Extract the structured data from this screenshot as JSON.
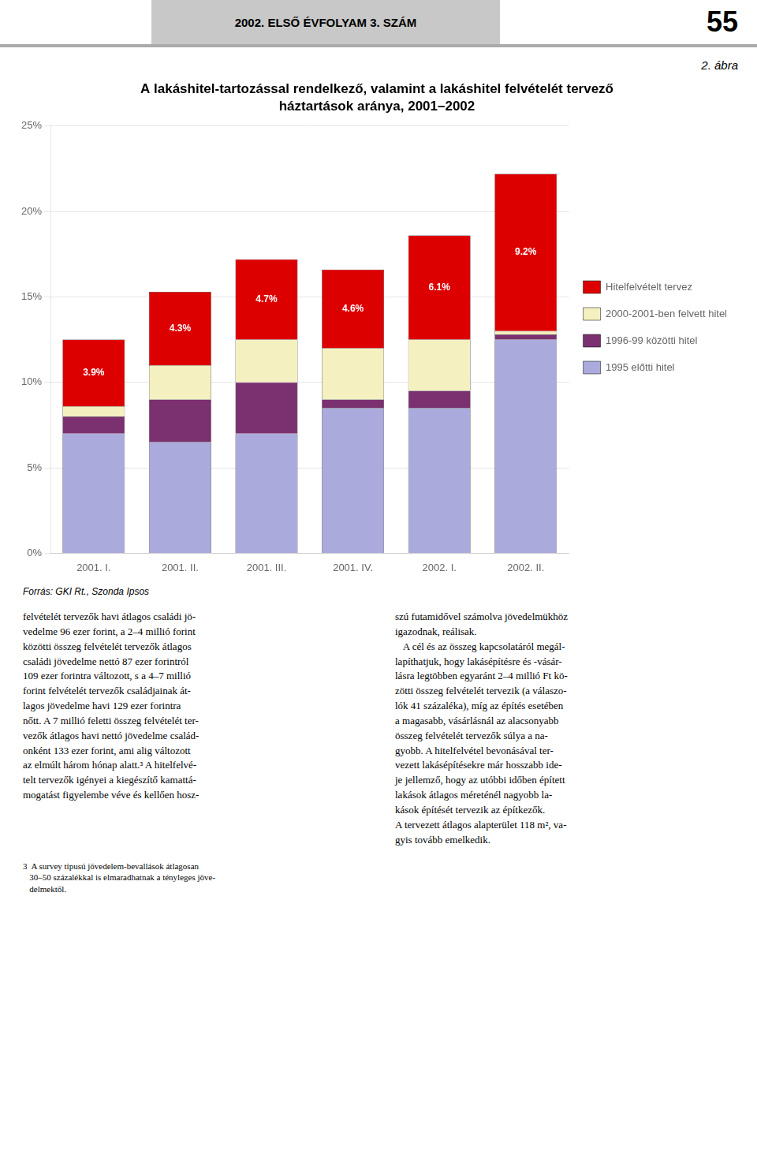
{
  "chart_data": {
    "type": "bar",
    "title": "A lakáshitel-tartozással rendelkező, valamint a lakáshitel felvételét tervező",
    "subtitle": "háztartások aránya, 2001–2002",
    "categories": [
      "2001. I.",
      "2001. II.",
      "2001. III.",
      "2001. IV.",
      "2002. I.",
      "2002. II."
    ],
    "series": [
      {
        "name": "1995 előtti hitel",
        "color": "#aaaadd",
        "values": [
          7.0,
          6.5,
          7.0,
          8.5,
          8.5,
          12.5
        ]
      },
      {
        "name": "1996-99 közötti hitel",
        "color": "#7b3070",
        "values": [
          1.0,
          2.5,
          3.0,
          0.5,
          1.0,
          0.3
        ]
      },
      {
        "name": "2000-2001-ben felvett hitel",
        "color": "#f5f0c0",
        "values": [
          0.6,
          2.0,
          2.5,
          3.0,
          3.0,
          0.2
        ]
      },
      {
        "name": "Hitelfelvételt tervez",
        "color": "#dd0000",
        "values": [
          3.9,
          4.3,
          4.7,
          4.6,
          6.1,
          9.2
        ],
        "data_labels": true,
        "value_labels": [
          "3.9%",
          "4.3%",
          "4.7%",
          "4.6%",
          "6.1%",
          "9.2%"
        ]
      }
    ],
    "stacked": true,
    "legend": "right",
    "grid": true,
    "ylim": [
      0,
      25
    ],
    "yticks": [
      {
        "value": 0,
        "label": "0%"
      },
      {
        "value": 5,
        "label": "5%"
      },
      {
        "value": 10,
        "label": "10%"
      },
      {
        "value": 15,
        "label": "15%"
      },
      {
        "value": 20,
        "label": "20%"
      },
      {
        "value": 25,
        "label": "25%"
      }
    ],
    "annotations": [
      "2002. ELSŐ ÉVFOLYAM 3. SZÁM",
      "55",
      "2. ábra",
      "Forrás: GKI Rt., Szonda Ipsos",
      "felvételét tervezők havi átlagos családi jö-\nvedelme 96 ezer forint, a 2–4 millió forint\nközötti összeg felvételét tervezők átlagos\ncsaládi jövedelme nettó 87 ezer forintról\n109 ezer forintra változott, s a 4–7 millió\nforint felvételét tervezők családjainak át-\nlagos jövedelme havi 129 ezer forintra\nnőtt. A 7 millió feletti összeg felvételét ter-\nvezők átlagos havi nettó jövedelme család-\nonként 133 ezer forint, ami alig változott\naz elmúlt három hónap alatt.³ A hitelfelvé-\ntelt tervezők igényei a kiegészítő kamattá-\nmogatást figyelembe véve és kellően hosz-",
      "szú futamidővel számolva jövedelmükhöz\nigazodnak, reálisak.\n   A cél és az összeg kapcsolatáról megál-\nlapíthatjuk, hogy lakásépítésre és -vásár-\nlásra legtöbben egyaránt 2–4 millió Ft kö-\nzötti összeg felvételét tervezik (a válaszo-\nlók 41 százaléka), míg az építés esetében\na magasabb, vásárlásnál az alacsonyabb\nösszeg felvételét tervezők súlya a na-\ngyobb. A hitelfelvétel bevonásával ter-\nvezett lakásépítésekre már hosszabb ide-\nje jellemző, hogy az utóbbi időben épített\nlakások átlagos méreténél nagyobb la-\nkások építését tervezik az építkezők.\nA tervezett átlagos alapterület 118 m², va-\ngyis tovább emelkedik.",
      "3  A survey típusú jövedelem-bevallások átlagosan\n   30–50 százalékkal is elmaradhatnak a tényleges jöve-\n   delmektől."
    ]
  }
}
